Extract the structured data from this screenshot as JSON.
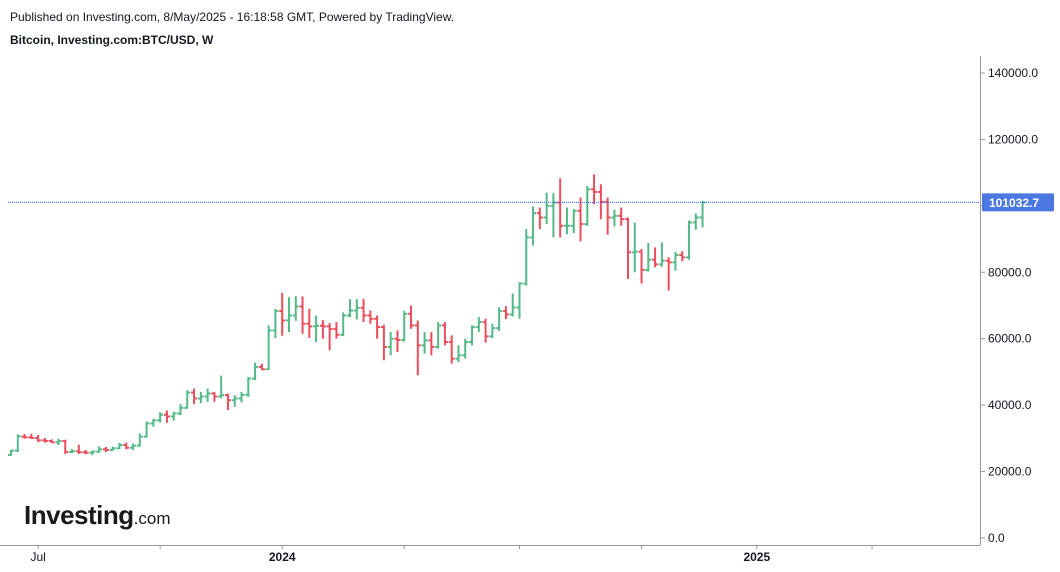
{
  "header": {
    "published": "Published on Investing.com, 8/May/2025 - 16:18:58 GMT, Powered by TradingView.",
    "symbol": "Bitcoin, Investing.com:BTC/USD, W"
  },
  "logo": {
    "word": "Investing",
    "suffix": ".com"
  },
  "colors": {
    "up": "#53b987",
    "down": "#eb4d5c",
    "last_price_line": "#2962ff",
    "last_price_label": "#4a77e0",
    "axis": "#9598a1"
  },
  "chart_data": {
    "type": "ohlc",
    "interval": "W",
    "ylim": [
      0,
      145000
    ],
    "ytick_values": [
      0,
      20000,
      40000,
      60000,
      80000,
      100000,
      120000,
      140000
    ],
    "ytick_labels": [
      "0.0",
      "20000.0",
      "40000.0",
      "60000.0",
      "80000.0",
      "100000.0",
      "120000.0",
      "140000.0"
    ],
    "xtick_labels": [
      {
        "label": "Jul",
        "bar": 4
      },
      {
        "label": "",
        "bar": 22
      },
      {
        "label": "2024",
        "bar": 40
      },
      {
        "label": "",
        "bar": 58
      },
      {
        "label": "",
        "bar": 75
      },
      {
        "label": "",
        "bar": 93
      },
      {
        "label": "2025",
        "bar": 110
      },
      {
        "label": "",
        "bar": 127
      }
    ],
    "last_price": 101032.7,
    "last_price_label": "101032.7",
    "bars": [
      [
        25000,
        26500,
        24800,
        26300
      ],
      [
        26300,
        31200,
        25900,
        30600
      ],
      [
        30500,
        31300,
        29900,
        30300
      ],
      [
        30300,
        31400,
        29800,
        30100
      ],
      [
        30100,
        31000,
        28900,
        29400
      ],
      [
        29400,
        30100,
        28700,
        29200
      ],
      [
        29200,
        29700,
        28600,
        28800
      ],
      [
        28800,
        29900,
        28000,
        29200
      ],
      [
        29200,
        29600,
        25300,
        25900
      ],
      [
        25900,
        26800,
        25600,
        26100
      ],
      [
        26100,
        28100,
        25300,
        25800
      ],
      [
        25800,
        26500,
        25200,
        25700
      ],
      [
        25700,
        26300,
        24900,
        26000
      ],
      [
        26000,
        27600,
        25700,
        26700
      ],
      [
        26700,
        27400,
        25900,
        26500
      ],
      [
        26500,
        27500,
        26200,
        27000
      ],
      [
        27000,
        28600,
        26800,
        28000
      ],
      [
        28000,
        28700,
        26700,
        27200
      ],
      [
        27200,
        28400,
        26500,
        27800
      ],
      [
        27800,
        31500,
        27500,
        30500
      ],
      [
        30500,
        35100,
        30300,
        34500
      ],
      [
        34500,
        35900,
        33500,
        35400
      ],
      [
        35400,
        37900,
        34800,
        37100
      ],
      [
        37100,
        38400,
        34700,
        36600
      ],
      [
        36600,
        38000,
        35300,
        37500
      ],
      [
        37500,
        40300,
        37000,
        39200
      ],
      [
        39200,
        44500,
        38900,
        43800
      ],
      [
        43800,
        45000,
        40300,
        42000
      ],
      [
        42000,
        44000,
        40600,
        42600
      ],
      [
        42600,
        45000,
        41000,
        43500
      ],
      [
        43500,
        44000,
        41000,
        42600
      ],
      [
        42600,
        48900,
        42100,
        43000
      ],
      [
        43000,
        43500,
        38500,
        41500
      ],
      [
        41500,
        43000,
        39500,
        42000
      ],
      [
        42000,
        44000,
        40800,
        43100
      ],
      [
        43100,
        48500,
        42500,
        48000
      ],
      [
        48000,
        52800,
        47500,
        51500
      ],
      [
        51500,
        52500,
        50600,
        50800
      ],
      [
        50800,
        64000,
        50600,
        62500
      ],
      [
        62500,
        69000,
        60200,
        68300
      ],
      [
        68300,
        73800,
        60900,
        65500
      ],
      [
        65500,
        72500,
        62000,
        67000
      ],
      [
        67000,
        72800,
        65400,
        69700
      ],
      [
        69700,
        72700,
        61500,
        64500
      ],
      [
        64500,
        69000,
        60200,
        63700
      ],
      [
        63700,
        67000,
        59000,
        63900
      ],
      [
        63900,
        65600,
        60000,
        63700
      ],
      [
        63700,
        64700,
        56500,
        62900
      ],
      [
        62900,
        65000,
        60000,
        61200
      ],
      [
        61200,
        67900,
        60800,
        67000
      ],
      [
        67000,
        71900,
        66500,
        68500
      ],
      [
        68500,
        71900,
        65800,
        69300
      ],
      [
        69300,
        72000,
        65000,
        67000
      ],
      [
        67000,
        68500,
        64500,
        66000
      ],
      [
        66000,
        67000,
        60000,
        63500
      ],
      [
        63500,
        64200,
        53500,
        57500
      ],
      [
        57500,
        62000,
        55000,
        60000
      ],
      [
        60000,
        62500,
        56000,
        59600
      ],
      [
        59600,
        68400,
        59100,
        67500
      ],
      [
        67500,
        70000,
        63000,
        64000
      ],
      [
        64000,
        65500,
        49000,
        58000
      ],
      [
        58000,
        62000,
        55500,
        59500
      ],
      [
        59500,
        62000,
        55000,
        57500
      ],
      [
        57500,
        65000,
        57000,
        64000
      ],
      [
        64000,
        65000,
        58000,
        59000
      ],
      [
        59000,
        61000,
        52500,
        54000
      ],
      [
        54000,
        58000,
        53000,
        55000
      ],
      [
        55000,
        60000,
        54000,
        59000
      ],
      [
        59000,
        64000,
        58000,
        63500
      ],
      [
        63500,
        66500,
        62000,
        65000
      ],
      [
        65000,
        66000,
        58800,
        60700
      ],
      [
        60700,
        64500,
        60200,
        63200
      ],
      [
        63200,
        69500,
        62300,
        68300
      ],
      [
        68300,
        69800,
        65900,
        67300
      ],
      [
        67300,
        73600,
        66700,
        69400
      ],
      [
        69400,
        77000,
        66000,
        76600
      ],
      [
        76600,
        93000,
        76000,
        90500
      ],
      [
        90500,
        99800,
        88000,
        97800
      ],
      [
        97800,
        99500,
        93000,
        96500
      ],
      [
        96500,
        104000,
        94500,
        100000
      ],
      [
        100000,
        103800,
        90500,
        101000
      ],
      [
        101000,
        108300,
        90500,
        94000
      ],
      [
        94000,
        99500,
        91500,
        94000
      ],
      [
        94000,
        99000,
        91800,
        98500
      ],
      [
        98500,
        102500,
        89300,
        94500
      ],
      [
        94500,
        106000,
        94000,
        105000
      ],
      [
        105000,
        109500,
        100500,
        104200
      ],
      [
        104200,
        106500,
        96000,
        101200
      ],
      [
        101200,
        102500,
        91300,
        96500
      ],
      [
        96500,
        98800,
        93800,
        97000
      ],
      [
        97000,
        99500,
        94000,
        96000
      ],
      [
        96000,
        96500,
        78000,
        86000
      ],
      [
        86000,
        95000,
        80000,
        86200
      ],
      [
        86200,
        87000,
        76600,
        80700
      ],
      [
        80700,
        88800,
        80200,
        83800
      ],
      [
        83800,
        87500,
        81500,
        82400
      ],
      [
        82400,
        89000,
        81700,
        83500
      ],
      [
        83500,
        84500,
        74500,
        83000
      ],
      [
        83000,
        86200,
        80500,
        85200
      ],
      [
        85200,
        86300,
        83300,
        84500
      ],
      [
        84500,
        95600,
        83800,
        95000
      ],
      [
        95000,
        97700,
        92800,
        96500
      ],
      [
        96500,
        101500,
        93500,
        101033
      ]
    ]
  }
}
